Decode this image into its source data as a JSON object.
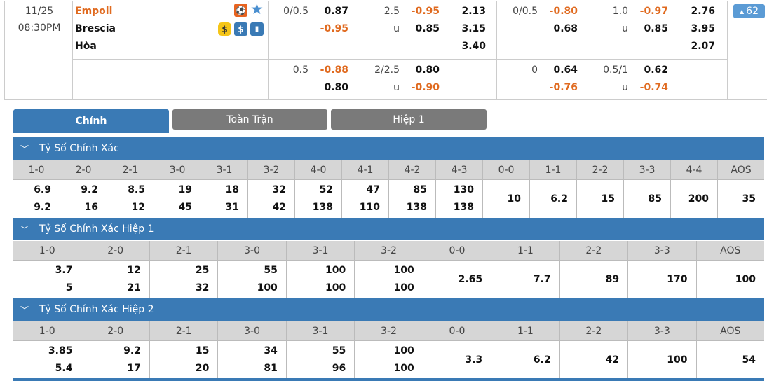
{
  "match": {
    "date": "11/25",
    "time": "08:30PM",
    "home": "Empoli",
    "away": "Brescia",
    "draw": "Hòa",
    "badge": "62",
    "icons": {
      "row1": [
        "player-icon",
        "star-icon"
      ],
      "row2": [
        "coin-icon",
        "dollar-icon",
        "stats-icon"
      ]
    }
  },
  "odds": {
    "ft": {
      "hdp_line": "0/0.5",
      "hdp_home": "0.87",
      "hdp_away": "-0.95",
      "ou_line": "2.5",
      "ou_over": "-0.95",
      "ou_u": "u",
      "ou_under": "0.85",
      "x_home": "2.13",
      "x_away": "3.15",
      "x_draw": "3.40"
    },
    "ft2": {
      "hdp_line": "0.5",
      "hdp_home": "-0.88",
      "hdp_away": "0.80",
      "ou_line": "2/2.5",
      "ou_over": "0.80",
      "ou_u": "u",
      "ou_under": "-0.90"
    },
    "h1": {
      "hdp_line": "0/0.5",
      "hdp_home": "-0.80",
      "hdp_away": "0.68",
      "ou_line": "1.0",
      "ou_over": "-0.97",
      "ou_u": "u",
      "ou_under": "0.85",
      "x_home": "2.76",
      "x_away": "3.95",
      "x_draw": "2.07"
    },
    "h1b": {
      "hdp_line": "0",
      "hdp_home": "0.64",
      "hdp_away": "-0.76",
      "ou_line": "0.5/1",
      "ou_over": "0.62",
      "ou_u": "u",
      "ou_under": "-0.74"
    }
  },
  "colors": {
    "accent": "#3a7ab5",
    "negative": "#e06a1f",
    "tab_inactive": "#7a7a7a"
  },
  "tabs": [
    "Chính",
    "Toàn Trận",
    "Hiệp 1"
  ],
  "sections": [
    {
      "title": "Tỷ Số Chính Xác",
      "cols": [
        [
          "1-0",
          "6.9",
          "9.2"
        ],
        [
          "2-0",
          "9.2",
          "16"
        ],
        [
          "2-1",
          "8.5",
          "12"
        ],
        [
          "3-0",
          "19",
          "45"
        ],
        [
          "3-1",
          "18",
          "31"
        ],
        [
          "3-2",
          "32",
          "42"
        ],
        [
          "4-0",
          "52",
          "138"
        ],
        [
          "4-1",
          "47",
          "110"
        ],
        [
          "4-2",
          "85",
          "138"
        ],
        [
          "4-3",
          "130",
          "138"
        ],
        [
          "0-0",
          "10"
        ],
        [
          "1-1",
          "6.2"
        ],
        [
          "2-2",
          "15"
        ],
        [
          "3-3",
          "85"
        ],
        [
          "4-4",
          "200"
        ],
        [
          "AOS",
          "35"
        ]
      ]
    },
    {
      "title": "Tỷ Số Chính Xác Hiệp 1",
      "cols": [
        [
          "1-0",
          "3.7",
          "5"
        ],
        [
          "2-0",
          "12",
          "21"
        ],
        [
          "2-1",
          "25",
          "32"
        ],
        [
          "3-0",
          "55",
          "100"
        ],
        [
          "3-1",
          "100",
          "100"
        ],
        [
          "3-2",
          "100",
          "100"
        ],
        [
          "0-0",
          "2.65"
        ],
        [
          "1-1",
          "7.7"
        ],
        [
          "2-2",
          "89"
        ],
        [
          "3-3",
          "170"
        ],
        [
          "AOS",
          "100"
        ]
      ]
    },
    {
      "title": "Tỷ Số Chính Xác Hiệp 2",
      "cols": [
        [
          "1-0",
          "3.85",
          "5.4"
        ],
        [
          "2-0",
          "9.2",
          "17"
        ],
        [
          "2-1",
          "15",
          "20"
        ],
        [
          "3-0",
          "34",
          "81"
        ],
        [
          "3-1",
          "55",
          "96"
        ],
        [
          "3-2",
          "100",
          "100"
        ],
        [
          "0-0",
          "3.3"
        ],
        [
          "1-1",
          "6.2"
        ],
        [
          "2-2",
          "42"
        ],
        [
          "3-3",
          "100"
        ],
        [
          "AOS",
          "54"
        ]
      ]
    }
  ]
}
